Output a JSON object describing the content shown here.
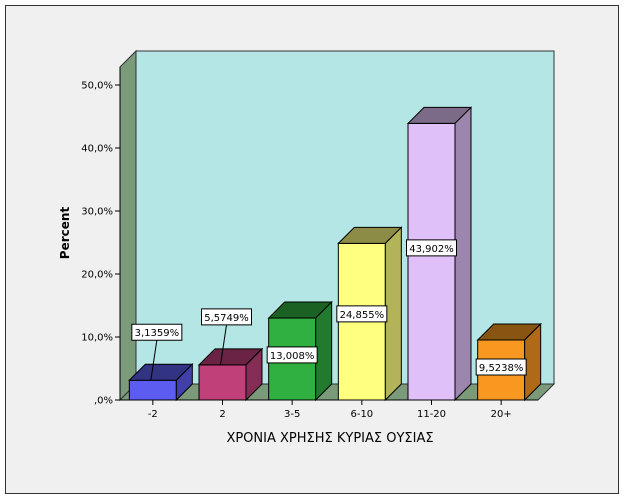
{
  "chart_data": {
    "type": "bar",
    "style": "3d",
    "categories": [
      "-2",
      "2",
      "3-5",
      "6-10",
      "11-20",
      "20+"
    ],
    "values": [
      3.1359,
      5.5749,
      13.008,
      24.855,
      43.902,
      9.5238
    ],
    "data_labels": [
      "3,1359%",
      "5,5749%",
      "13,008%",
      "24,855%",
      "43,902%",
      "9,5238%"
    ],
    "colors": [
      "#5c5cf0",
      "#c0407a",
      "#30b040",
      "#ffff80",
      "#e0c0f8",
      "#f89820"
    ],
    "xlabel": "ΧΡΟΝΙΑ ΧΡΗΣΗΣ ΚΥΡΙΑΣ ΟΥΣΙΑΣ",
    "ylabel": "Percent",
    "ylim": [
      0,
      50
    ],
    "yticks": [
      0,
      10,
      20,
      30,
      40,
      50
    ],
    "ytick_labels": [
      ",0%",
      "10,0%",
      "20,0%",
      "30,0%",
      "40,0%",
      "50,0%"
    ],
    "grid": false,
    "legend": "none",
    "back_wall_color": "#b4e6e6",
    "side_wall_color": "#7a9a7a",
    "floor_color": "#7a9a7a"
  }
}
